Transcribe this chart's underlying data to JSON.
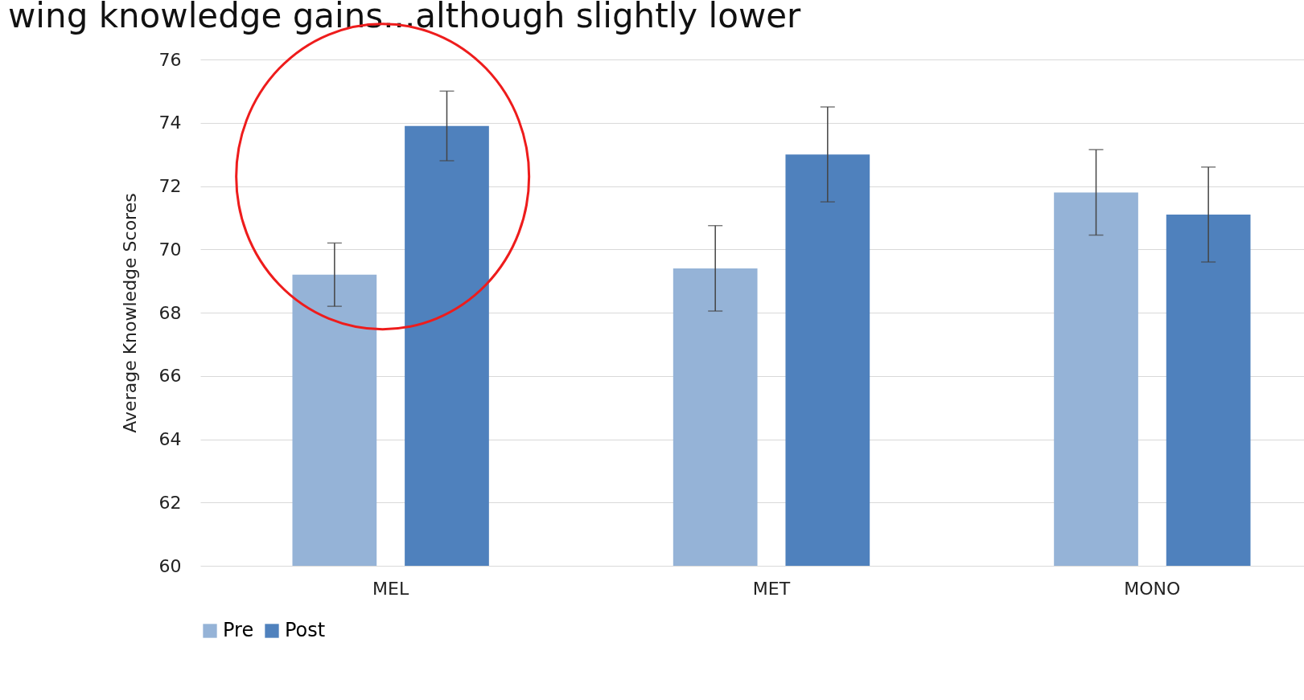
{
  "chart_data": {
    "type": "bar",
    "title": "wing knowledge gains...although slightly lower",
    "ylabel": "Average Knowledge Scores",
    "categories": [
      "MEL",
      "MET",
      "MONO"
    ],
    "series": [
      {
        "name": "Pre",
        "color": "#95b3d7",
        "values": [
          69.2,
          69.4,
          71.8
        ],
        "errors": [
          1.0,
          1.35,
          1.35
        ]
      },
      {
        "name": "Post",
        "color": "#4f81bd",
        "values": [
          73.9,
          73.0,
          71.1
        ],
        "errors": [
          1.1,
          1.5,
          1.5
        ]
      }
    ],
    "ylim": [
      60,
      76
    ],
    "yticks": [
      60,
      62,
      64,
      66,
      68,
      70,
      72,
      74,
      76
    ],
    "grid": "y",
    "legend": "bottom"
  }
}
